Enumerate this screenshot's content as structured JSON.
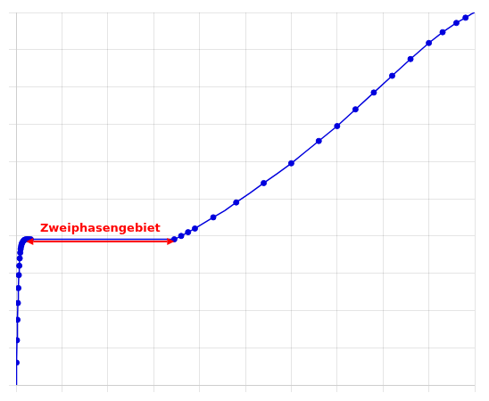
{
  "chart_data": {
    "type": "line",
    "series": [
      {
        "type": "line",
        "color": "#0000dd",
        "x": [
          0,
          0.001,
          0.002,
          0.003,
          0.004,
          0.005,
          0.006,
          0.007,
          0.008,
          0.009,
          0.01,
          0.011,
          0.012,
          0.013,
          0.015,
          0.017,
          0.019,
          0.022,
          0.025,
          0.028,
          0.032,
          0.04,
          0.345,
          0.36,
          0.375,
          0.39,
          0.41,
          0.43,
          0.455,
          0.48,
          0.51,
          0.54,
          0.57,
          0.6,
          0.63,
          0.66,
          0.7,
          0.74,
          0.78,
          0.82,
          0.86,
          0.9,
          0.93,
          0.96,
          0.98,
          0.993,
          1
        ],
        "values": [
          0,
          0.06,
          0.12,
          0.175,
          0.22,
          0.26,
          0.295,
          0.32,
          0.34,
          0.355,
          0.365,
          0.372,
          0.377,
          0.381,
          0.385,
          0.388,
          0.39,
          0.391,
          0.391,
          0.391,
          0.391,
          0.391,
          0.391,
          0.4,
          0.41,
          0.42,
          0.435,
          0.45,
          0.468,
          0.49,
          0.515,
          0.542,
          0.568,
          0.595,
          0.625,
          0.655,
          0.695,
          0.74,
          0.785,
          0.83,
          0.875,
          0.918,
          0.947,
          0.972,
          0.986,
          0.996,
          1
        ]
      },
      {
        "type": "scatter",
        "color": "#0000dd",
        "marker": "circle",
        "x": [
          0.001,
          0.002,
          0.003,
          0.004,
          0.005,
          0.006,
          0.007,
          0.008,
          0.009,
          0.01,
          0.011,
          0.012,
          0.013,
          0.015,
          0.017,
          0.019,
          0.022,
          0.025,
          0.028,
          0.032,
          0.345,
          0.36,
          0.375,
          0.39,
          0.43,
          0.48,
          0.54,
          0.6,
          0.66,
          0.7,
          0.74,
          0.78,
          0.82,
          0.86,
          0.9,
          0.93,
          0.96,
          0.98
        ],
        "values": [
          0.06,
          0.12,
          0.175,
          0.22,
          0.26,
          0.295,
          0.32,
          0.34,
          0.355,
          0.365,
          0.372,
          0.377,
          0.381,
          0.385,
          0.388,
          0.39,
          0.391,
          0.391,
          0.391,
          0.391,
          0.391,
          0.4,
          0.41,
          0.42,
          0.45,
          0.49,
          0.542,
          0.595,
          0.655,
          0.695,
          0.74,
          0.785,
          0.83,
          0.875,
          0.918,
          0.947,
          0.972,
          0.986
        ]
      }
    ],
    "xlim": [
      0,
      1
    ],
    "ylim": [
      0,
      1
    ],
    "xticks": [
      0,
      0.1,
      0.2,
      0.3,
      0.4,
      0.5,
      0.6,
      0.7,
      0.8,
      0.9,
      1
    ],
    "yticks": [
      0,
      0.1,
      0.2,
      0.3,
      0.4,
      0.5,
      0.6,
      0.7,
      0.8,
      0.9,
      1
    ],
    "grid": true,
    "tick_labels": false,
    "annotations": [
      {
        "text": "Zweiphasengebiet",
        "x": [
          0.022,
          0.345
        ],
        "y": 0.385,
        "color": "#ff0000"
      }
    ]
  }
}
